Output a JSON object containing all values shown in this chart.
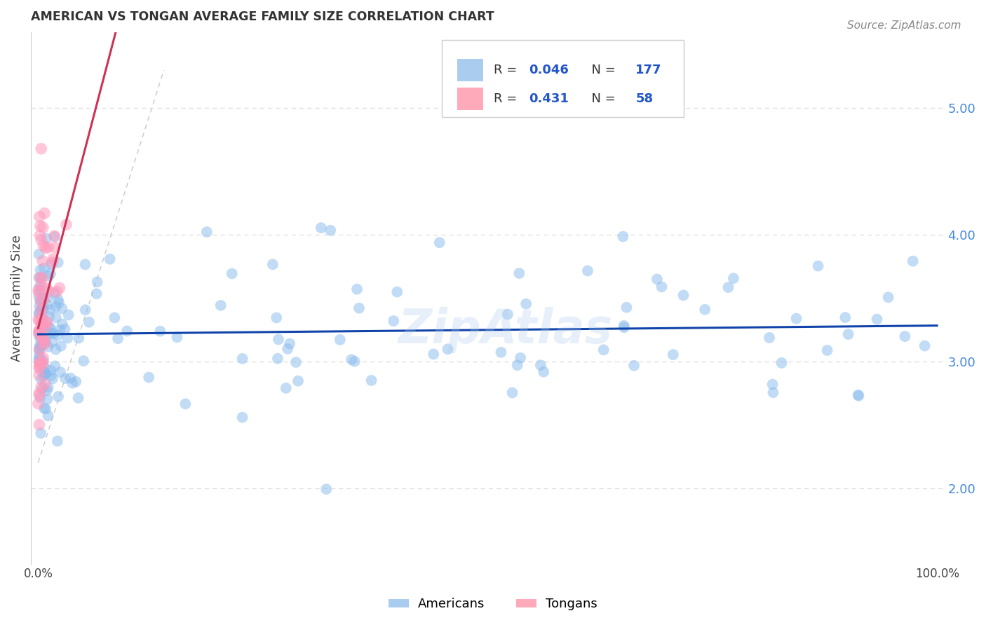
{
  "title": "AMERICAN VS TONGAN AVERAGE FAMILY SIZE CORRELATION CHART",
  "source": "Source: ZipAtlas.com",
  "ylabel": "Average Family Size",
  "watermark": "ZipAtlas",
  "legend_blue_R": "0.046",
  "legend_blue_N": "177",
  "legend_pink_R": "0.431",
  "legend_pink_N": "58",
  "blue_scatter_color": "#88BBEE",
  "pink_scatter_color": "#FF99BB",
  "trend_blue_color": "#1144AA",
  "trend_pink_color": "#CC3355",
  "diag_color": "#CCCCCC",
  "ytick_color": "#4488DD",
  "grid_color": "#DDDDDD",
  "ytick_labels": [
    "2.00",
    "3.00",
    "4.00",
    "5.00"
  ],
  "ytick_values": [
    2.0,
    3.0,
    4.0,
    5.0
  ],
  "ylim": [
    1.4,
    5.6
  ],
  "xlim": [
    0.0,
    1.0
  ]
}
